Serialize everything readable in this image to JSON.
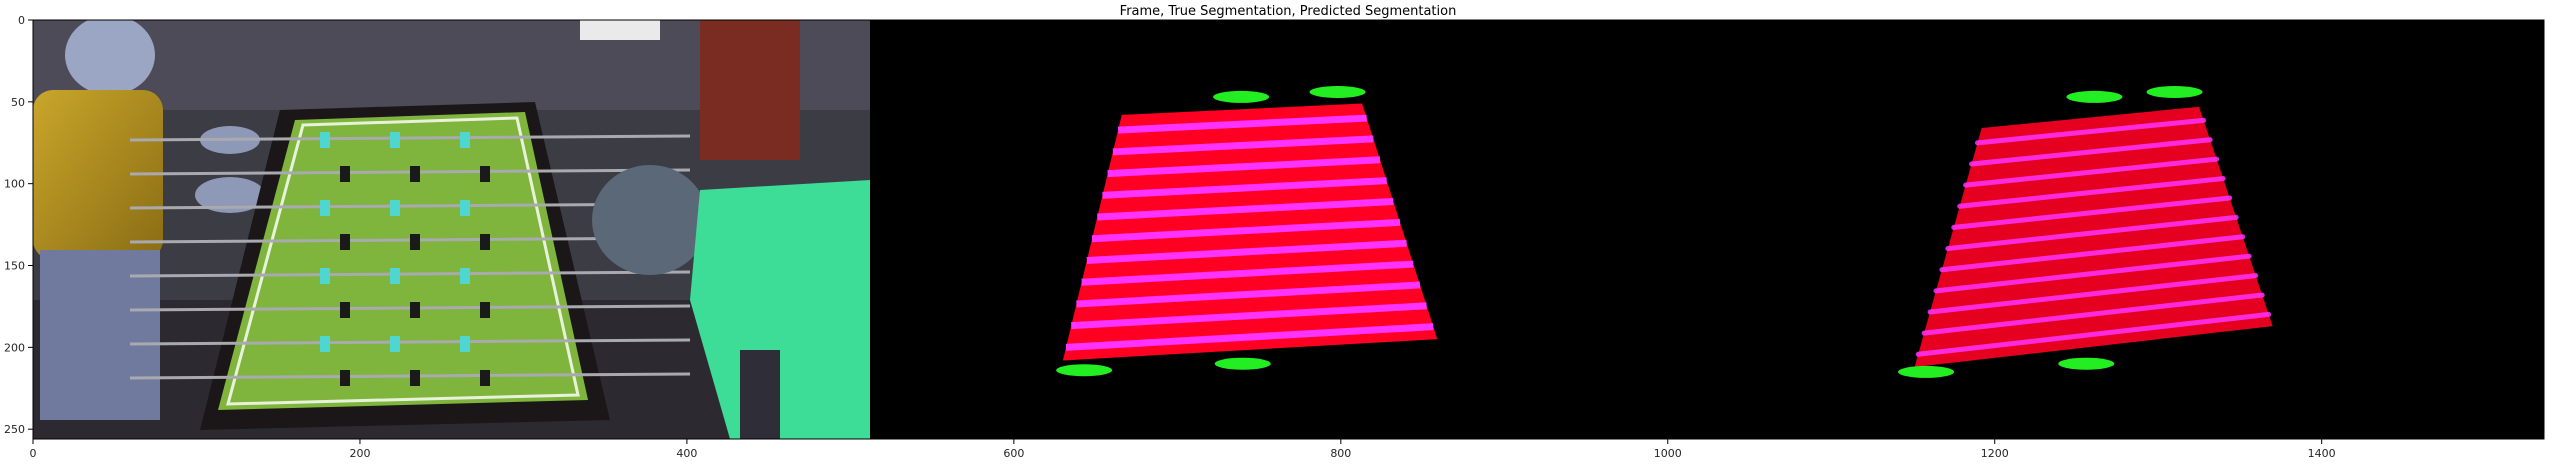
{
  "chart_data": {
    "type": "image",
    "title": "Frame, True Segmentation, Predicted Segmentation",
    "xlabel": "",
    "ylabel": "",
    "xlim": [
      0,
      1536
    ],
    "ylim": [
      256,
      0
    ],
    "x_ticks": [
      0,
      200,
      400,
      600,
      800,
      1000,
      1200,
      1400
    ],
    "y_ticks": [
      0,
      50,
      100,
      150,
      200,
      250
    ],
    "grid": false,
    "panels": [
      {
        "name": "frame",
        "x_range": [
          0,
          512
        ]
      },
      {
        "name": "true-segmentation",
        "x_range": [
          512,
          1024
        ]
      },
      {
        "name": "predicted-segmentation",
        "x_range": [
          1024,
          1536
        ]
      }
    ],
    "true_segmentation": {
      "table_quad": [
        [
          666,
          58
        ],
        [
          813,
          51
        ],
        [
          859,
          195
        ],
        [
          630,
          208
        ]
      ],
      "rod_stripes": 11,
      "green_blobs": [
        {
          "x": 739,
          "y": 47
        },
        {
          "x": 798,
          "y": 44
        },
        {
          "x": 643,
          "y": 214
        },
        {
          "x": 740,
          "y": 210
        }
      ]
    },
    "predicted_segmentation": {
      "table_quad": [
        [
          1192,
          66
        ],
        [
          1325,
          53
        ],
        [
          1370,
          187
        ],
        [
          1151,
          212
        ]
      ],
      "rod_stripes": 11,
      "green_blobs": [
        {
          "x": 1261,
          "y": 47
        },
        {
          "x": 1310,
          "y": 44
        },
        {
          "x": 1158,
          "y": 215
        },
        {
          "x": 1256,
          "y": 210
        }
      ]
    },
    "colors": {
      "table": "#ff0022",
      "rods": "#ff33ff",
      "players": "#22ee22",
      "background": "#000000",
      "frame_felt": "#7fb53d"
    }
  }
}
